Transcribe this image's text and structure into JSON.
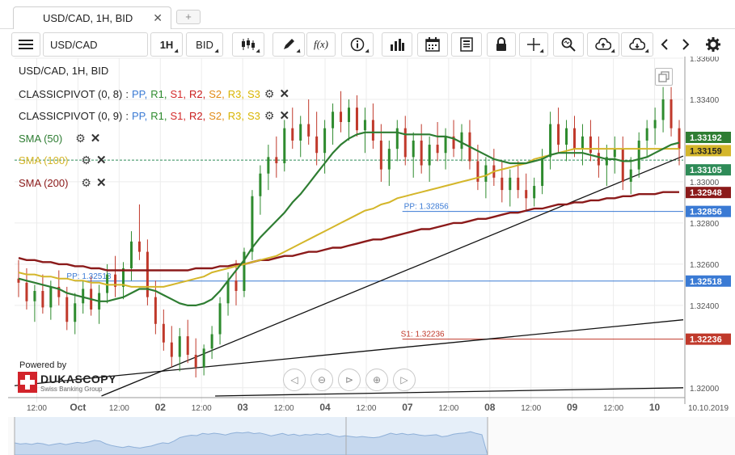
{
  "tabs": [
    {
      "label": "USD/CAD, 1H, BID",
      "close": "✕"
    }
  ],
  "tab_add": "+",
  "toolbar": {
    "symbol": "USD/CAD",
    "interval": "1H",
    "price_type": "BID",
    "fx_label": "f(x)"
  },
  "chart_header": "USD/CAD, 1H, BID",
  "legend": {
    "pivot1": {
      "name": "CLASSICPIVOT (0, 8)",
      "sep": ":",
      "items": [
        "PP,",
        "R1,",
        "S1,",
        "R2,",
        "S2,",
        "R3,",
        "S3"
      ]
    },
    "pivot2": {
      "name": "CLASSICPIVOT (0, 9)",
      "sep": ":",
      "items": [
        "PP,",
        "R1,",
        "S1,",
        "R2,",
        "S2,",
        "R3,",
        "S3"
      ]
    },
    "sma50": "SMA (50)",
    "sma100": "SMA (100)",
    "sma200": "SMA (200)",
    "pivot_colors": [
      "#3a7ad4",
      "#2e8b2e",
      "#d42a2a",
      "#c91b1b",
      "#e08a16",
      "#d8b400",
      "#d8b400"
    ]
  },
  "powered_by": "Powered by",
  "logo": {
    "name": "DUKASCOPY",
    "sub": "Swiss Banking Group"
  },
  "colors": {
    "sma50": "#2e7d32",
    "sma100": "#d4b62a",
    "sma200": "#8b1a1a",
    "up_candle": "#2e8b2e",
    "down_candle": "#c0392b",
    "pivot_line": "#3a7ad4",
    "s1_line": "#c0392b"
  },
  "chart_data": {
    "type": "candlestick",
    "title": "USD/CAD, 1H, BID",
    "ylim": [
      1.3196,
      1.336
    ],
    "y_ticks": [
      "1.33600",
      "1.33400",
      "1.33000",
      "1.32800",
      "1.32600",
      "1.32400",
      "1.32000"
    ],
    "x_labels": [
      "12:00",
      "Oct",
      "12:00",
      "02",
      "12:00",
      "03",
      "12:00",
      "04",
      "12:00",
      "07",
      "12:00",
      "08",
      "12:00",
      "09",
      "12:00",
      "10"
    ],
    "date_label": "10.10.2019",
    "price_badges": [
      {
        "label": "1.33192",
        "value": 1.33192,
        "color": "#2e7d32"
      },
      {
        "label": "1.33159",
        "value": 1.33159,
        "color": "#d4b62a"
      },
      {
        "label": "1.33105",
        "value": 1.33105,
        "color": "#2e8b57"
      },
      {
        "label": "1.32948",
        "value": 1.32948,
        "color": "#8b1a1a"
      },
      {
        "label": "1.32856",
        "value": 1.32856,
        "color": "#3a7ad4"
      },
      {
        "label": "1.32518",
        "value": 1.32518,
        "color": "#3a7ad4"
      },
      {
        "label": "1.32236",
        "value": 1.32236,
        "color": "#c0392b"
      }
    ],
    "annotations": [
      {
        "label": "PP: 1.32856",
        "value": 1.32856
      },
      {
        "label": "PP: 1.32518",
        "value": 1.32518
      },
      {
        "label": "S1: 1.32236",
        "value": 1.32236
      }
    ],
    "candles": [
      [
        1.3253,
        1.3262,
        1.3244,
        1.3251
      ],
      [
        1.3251,
        1.3258,
        1.3238,
        1.3242
      ],
      [
        1.3242,
        1.325,
        1.3232,
        1.3247
      ],
      [
        1.3247,
        1.3255,
        1.3236,
        1.3239
      ],
      [
        1.3239,
        1.3252,
        1.3233,
        1.3249
      ],
      [
        1.3249,
        1.3257,
        1.324,
        1.3244
      ],
      [
        1.3244,
        1.3249,
        1.3228,
        1.3232
      ],
      [
        1.3232,
        1.3246,
        1.3226,
        1.3241
      ],
      [
        1.3241,
        1.3252,
        1.3236,
        1.3248
      ],
      [
        1.3248,
        1.3254,
        1.3235,
        1.3238
      ],
      [
        1.3238,
        1.325,
        1.3231,
        1.3246
      ],
      [
        1.3246,
        1.326,
        1.3241,
        1.3255
      ],
      [
        1.3255,
        1.3264,
        1.3244,
        1.3249
      ],
      [
        1.3249,
        1.3261,
        1.3243,
        1.3258
      ],
      [
        1.3258,
        1.3276,
        1.3252,
        1.3271
      ],
      [
        1.3271,
        1.3289,
        1.3262,
        1.3266
      ],
      [
        1.3266,
        1.3272,
        1.324,
        1.3244
      ],
      [
        1.3244,
        1.3252,
        1.3226,
        1.3231
      ],
      [
        1.3231,
        1.3238,
        1.3218,
        1.3222
      ],
      [
        1.3222,
        1.323,
        1.321,
        1.3215
      ],
      [
        1.3215,
        1.3229,
        1.3208,
        1.3225
      ],
      [
        1.3225,
        1.3233,
        1.3212,
        1.3216
      ],
      [
        1.3216,
        1.3224,
        1.3205,
        1.321
      ],
      [
        1.321,
        1.3221,
        1.3206,
        1.3219
      ],
      [
        1.3219,
        1.323,
        1.3214,
        1.3226
      ],
      [
        1.3226,
        1.3244,
        1.3221,
        1.3241
      ],
      [
        1.3241,
        1.3256,
        1.3235,
        1.3252
      ],
      [
        1.3252,
        1.3262,
        1.324,
        1.3247
      ],
      [
        1.3247,
        1.3268,
        1.3244,
        1.3266
      ],
      [
        1.3266,
        1.3296,
        1.3262,
        1.3293
      ],
      [
        1.3293,
        1.3308,
        1.3284,
        1.3304
      ],
      [
        1.3304,
        1.3318,
        1.3296,
        1.3312
      ],
      [
        1.3312,
        1.3322,
        1.3302,
        1.3309
      ],
      [
        1.3309,
        1.333,
        1.3305,
        1.3326
      ],
      [
        1.3326,
        1.3336,
        1.3316,
        1.332
      ],
      [
        1.332,
        1.3332,
        1.3312,
        1.3328
      ],
      [
        1.3328,
        1.334,
        1.3318,
        1.3322
      ],
      [
        1.3322,
        1.3334,
        1.3308,
        1.3314
      ],
      [
        1.3314,
        1.333,
        1.3304,
        1.3326
      ],
      [
        1.3326,
        1.3338,
        1.3318,
        1.3334
      ],
      [
        1.3334,
        1.3344,
        1.3324,
        1.3329
      ],
      [
        1.3329,
        1.334,
        1.332,
        1.3336
      ],
      [
        1.3336,
        1.3342,
        1.3322,
        1.3325
      ],
      [
        1.3325,
        1.3336,
        1.3314,
        1.333
      ],
      [
        1.333,
        1.3338,
        1.3316,
        1.332
      ],
      [
        1.332,
        1.3328,
        1.33,
        1.3306
      ],
      [
        1.3306,
        1.332,
        1.3298,
        1.3316
      ],
      [
        1.3316,
        1.333,
        1.331,
        1.3326
      ],
      [
        1.3326,
        1.3332,
        1.3308,
        1.3312
      ],
      [
        1.3312,
        1.3324,
        1.3302,
        1.332
      ],
      [
        1.332,
        1.3328,
        1.3304,
        1.3308
      ],
      [
        1.3308,
        1.3322,
        1.33,
        1.3318
      ],
      [
        1.3318,
        1.3329,
        1.331,
        1.3314
      ],
      [
        1.3314,
        1.3326,
        1.3306,
        1.3322
      ],
      [
        1.3322,
        1.333,
        1.3312,
        1.3316
      ],
      [
        1.3316,
        1.3328,
        1.331,
        1.3324
      ],
      [
        1.3324,
        1.333,
        1.3306,
        1.331
      ],
      [
        1.331,
        1.3318,
        1.3296,
        1.33
      ],
      [
        1.33,
        1.3312,
        1.3292,
        1.3308
      ],
      [
        1.3308,
        1.3316,
        1.3298,
        1.3302
      ],
      [
        1.3302,
        1.331,
        1.329,
        1.3296
      ],
      [
        1.3296,
        1.3306,
        1.3288,
        1.3302
      ],
      [
        1.3302,
        1.331,
        1.3292,
        1.3296
      ],
      [
        1.3296,
        1.3304,
        1.3286,
        1.3292
      ],
      [
        1.3292,
        1.3302,
        1.3288,
        1.3298
      ],
      [
        1.3298,
        1.3316,
        1.3294,
        1.3312
      ],
      [
        1.3312,
        1.3334,
        1.3306,
        1.3328
      ],
      [
        1.3328,
        1.3336,
        1.3314,
        1.3318
      ],
      [
        1.3318,
        1.333,
        1.331,
        1.3326
      ],
      [
        1.3326,
        1.3332,
        1.3312,
        1.3316
      ],
      [
        1.3316,
        1.3328,
        1.3308,
        1.3322
      ],
      [
        1.3322,
        1.333,
        1.331,
        1.3314
      ],
      [
        1.3314,
        1.3322,
        1.3302,
        1.3308
      ],
      [
        1.3308,
        1.3318,
        1.3298,
        1.3312
      ],
      [
        1.3312,
        1.3322,
        1.3304,
        1.3316
      ],
      [
        1.3316,
        1.3322,
        1.3296,
        1.33
      ],
      [
        1.33,
        1.3312,
        1.3294,
        1.3306
      ],
      [
        1.3306,
        1.3324,
        1.3302,
        1.332
      ],
      [
        1.332,
        1.333,
        1.3312,
        1.3326
      ],
      [
        1.3326,
        1.3336,
        1.3318,
        1.333
      ],
      [
        1.333,
        1.3346,
        1.3324,
        1.334
      ],
      [
        1.334,
        1.3346,
        1.3322,
        1.3326
      ],
      [
        1.3326,
        1.333,
        1.3308,
        1.3316
      ]
    ],
    "sma50": [
      1.3253,
      1.3252,
      1.3251,
      1.325,
      1.3249,
      1.3248,
      1.3246,
      1.3245,
      1.3244,
      1.3243,
      1.3242,
      1.3242,
      1.3243,
      1.3244,
      1.3246,
      1.3248,
      1.3248,
      1.3247,
      1.3245,
      1.3243,
      1.3241,
      1.324,
      1.324,
      1.3241,
      1.3243,
      1.3247,
      1.3252,
      1.3257,
      1.3262,
      1.3268,
      1.3273,
      1.3277,
      1.3281,
      1.3285,
      1.329,
      1.3294,
      1.3299,
      1.3304,
      1.3309,
      1.3314,
      1.3318,
      1.3321,
      1.3323,
      1.3324,
      1.3324,
      1.3324,
      1.3324,
      1.3324,
      1.3323,
      1.3323,
      1.3323,
      1.3323,
      1.3322,
      1.3322,
      1.3321,
      1.3319,
      1.3317,
      1.3315,
      1.3313,
      1.3311,
      1.331,
      1.3309,
      1.3309,
      1.3309,
      1.331,
      1.3311,
      1.3313,
      1.3314,
      1.3314,
      1.3314,
      1.3314,
      1.3313,
      1.3312,
      1.3311,
      1.3311,
      1.331,
      1.331,
      1.3311,
      1.3312,
      1.3314,
      1.3316,
      1.3318,
      1.3319
    ],
    "sma100": [
      1.3256,
      1.3255,
      1.3255,
      1.3254,
      1.3254,
      1.3253,
      1.3253,
      1.3252,
      1.3252,
      1.3251,
      1.3251,
      1.325,
      1.325,
      1.325,
      1.3249,
      1.3249,
      1.3249,
      1.3249,
      1.3249,
      1.325,
      1.3251,
      1.3252,
      1.3253,
      1.3254,
      1.3256,
      1.3257,
      1.3258,
      1.3259,
      1.326,
      1.3261,
      1.3262,
      1.3263,
      1.3264,
      1.3266,
      1.3268,
      1.327,
      1.3272,
      1.3274,
      1.3276,
      1.3278,
      1.328,
      1.3282,
      1.3284,
      1.3286,
      1.3287,
      1.3289,
      1.329,
      1.3292,
      1.3293,
      1.3294,
      1.3295,
      1.3296,
      1.3297,
      1.3298,
      1.3299,
      1.33,
      1.3301,
      1.3302,
      1.3303,
      1.3305,
      1.3306,
      1.3307,
      1.3308,
      1.3309,
      1.3311,
      1.3312,
      1.3313,
      1.3314,
      1.3315,
      1.3316,
      1.3316,
      1.3316,
      1.3316,
      1.3316,
      1.3316,
      1.3316,
      1.3316,
      1.3316,
      1.3316,
      1.3316,
      1.3316,
      1.3316,
      1.3316
    ],
    "sma200": [
      1.3263,
      1.3262,
      1.3262,
      1.3261,
      1.3261,
      1.326,
      1.326,
      1.3259,
      1.3259,
      1.3258,
      1.3258,
      1.3257,
      1.3257,
      1.3257,
      1.3257,
      1.3257,
      1.3257,
      1.3257,
      1.3257,
      1.3257,
      1.3257,
      1.3257,
      1.3258,
      1.3258,
      1.3258,
      1.3259,
      1.3259,
      1.326,
      1.326,
      1.3261,
      1.3262,
      1.3262,
      1.3263,
      1.3264,
      1.3264,
      1.3265,
      1.3266,
      1.3266,
      1.3267,
      1.3268,
      1.3268,
      1.3269,
      1.327,
      1.3271,
      1.3272,
      1.3272,
      1.3273,
      1.3274,
      1.3275,
      1.3276,
      1.3277,
      1.3277,
      1.3278,
      1.3279,
      1.328,
      1.328,
      1.3281,
      1.3282,
      1.3282,
      1.3283,
      1.3284,
      1.3285,
      1.3285,
      1.3286,
      1.3287,
      1.3287,
      1.3288,
      1.3289,
      1.3289,
      1.329,
      1.329,
      1.3291,
      1.3291,
      1.3292,
      1.3292,
      1.3293,
      1.3293,
      1.3294,
      1.3294,
      1.3294,
      1.3295,
      1.3295,
      1.3295
    ],
    "trendlines": [
      {
        "from": [
          0.13,
          1.3196
        ],
        "to": [
          1.0,
          1.33125
        ]
      },
      {
        "from": [
          0.0,
          1.3201
        ],
        "to": [
          1.0,
          1.3233
        ]
      },
      {
        "from": [
          0.3,
          1.3196
        ],
        "to": [
          1.0,
          1.32
        ]
      }
    ],
    "horizontal_lines": [
      {
        "value": 1.32856,
        "x_start_frac": 0.58,
        "color": "#3a7ad4"
      },
      {
        "value": 1.32518,
        "x_start_frac": 0.09,
        "color": "#3a7ad4"
      },
      {
        "value": 1.32236,
        "x_start_frac": 0.58,
        "color": "#c0392b"
      },
      {
        "value": 1.33105,
        "x_start_frac": 0.0,
        "color": "#2e8b57",
        "dashed": true
      }
    ],
    "grid": true
  }
}
